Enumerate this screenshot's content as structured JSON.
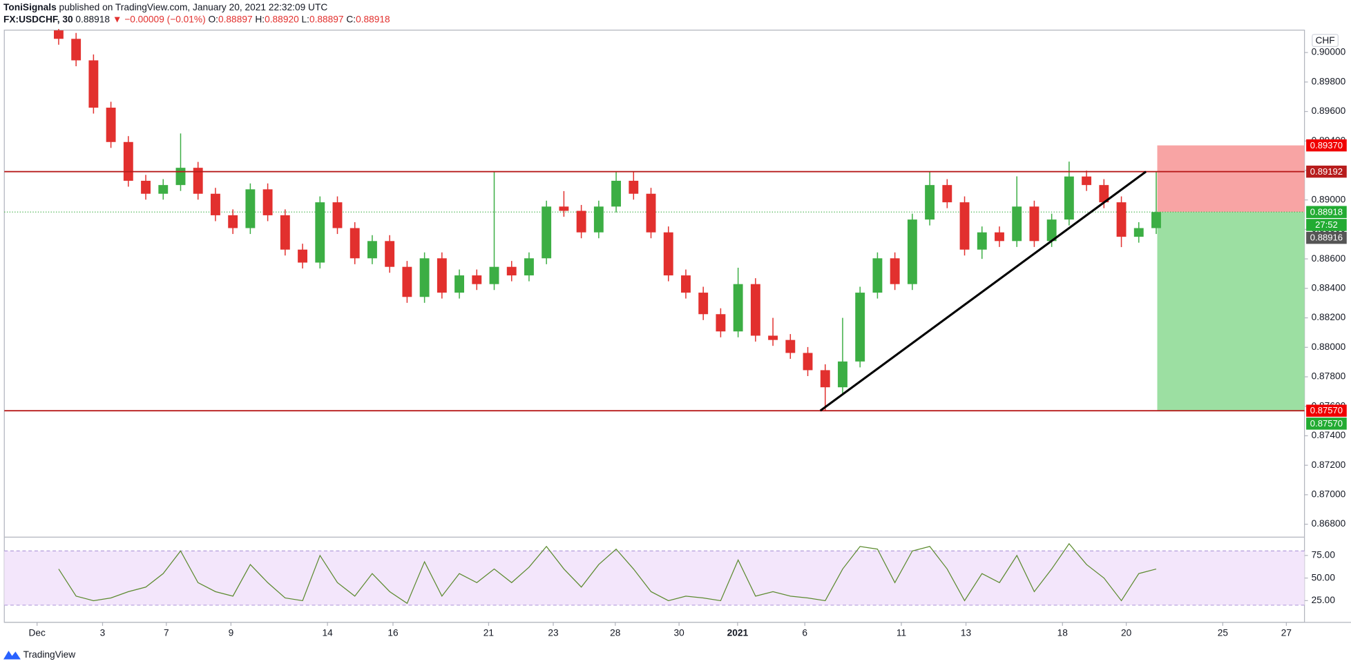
{
  "chart_data": [
    {
      "type": "candlestick",
      "author": "ToniSignals",
      "title": "published on TradingView.com, January 20, 2021 22:32:09 UTC",
      "symbol": "FX:USDCHF, 30",
      "change": "▼ −0.00009 (−0.01%)",
      "ohlc_keys": [
        "O:",
        "H:",
        "L:",
        "C:"
      ],
      "ohlc_values": [
        "0.88897",
        "0.88920",
        "0.88897",
        "0.88918"
      ],
      "currency": "CHF",
      "brand": "TradingView",
      "up_color": "#3cae44",
      "down_color": "#e2302e",
      "open": [
        0.9015,
        0.90093,
        0.89947,
        0.89626,
        0.89393,
        0.8913,
        0.89042,
        0.89101,
        0.89218,
        0.89042,
        0.88896,
        0.88809,
        0.89072,
        0.88896,
        0.88663,
        0.88575,
        0.88984,
        0.88809,
        0.88604,
        0.88721,
        0.88546,
        0.88342,
        0.88604,
        0.88371,
        0.88488,
        0.88429,
        0.88546,
        0.88488,
        0.88604,
        0.88955,
        0.88926,
        0.8878,
        0.88955,
        0.8913,
        0.89042,
        0.8878,
        0.88488,
        0.88371,
        0.88225,
        0.88108,
        0.88429,
        0.88079,
        0.8805,
        0.87962,
        0.87845,
        0.87729,
        0.87904,
        0.88371,
        0.88604,
        0.88429,
        0.88867,
        0.89101,
        0.88984,
        0.88663,
        0.8878,
        0.88721,
        0.88955,
        0.88721,
        0.88867,
        0.89159,
        0.89101,
        0.88984,
        0.8875,
        0.88809
      ],
      "high": [
        0.9016,
        0.90133,
        0.89987,
        0.89666,
        0.89433,
        0.8917,
        0.89141,
        0.89451,
        0.89258,
        0.89082,
        0.88936,
        0.89112,
        0.89112,
        0.88936,
        0.88703,
        0.89024,
        0.89024,
        0.88849,
        0.88761,
        0.88761,
        0.88586,
        0.88644,
        0.88644,
        0.88528,
        0.88528,
        0.89192,
        0.88586,
        0.88644,
        0.88995,
        0.8906,
        0.88966,
        0.88995,
        0.89192,
        0.89192,
        0.89082,
        0.8882,
        0.88528,
        0.88411,
        0.88265,
        0.8854,
        0.88469,
        0.882,
        0.8809,
        0.88002,
        0.87885,
        0.882,
        0.88411,
        0.88644,
        0.88644,
        0.88907,
        0.89192,
        0.89141,
        0.89024,
        0.8882,
        0.8882,
        0.8916,
        0.88995,
        0.88907,
        0.8926,
        0.89199,
        0.89141,
        0.89024,
        0.88849,
        0.89192
      ],
      "low": [
        0.90053,
        0.89907,
        0.89586,
        0.89353,
        0.8909,
        0.89002,
        0.89002,
        0.89061,
        0.89002,
        0.88856,
        0.88769,
        0.88769,
        0.88856,
        0.88623,
        0.88535,
        0.88535,
        0.88769,
        0.88564,
        0.88564,
        0.88506,
        0.88302,
        0.88302,
        0.88331,
        0.88331,
        0.88389,
        0.88389,
        0.88448,
        0.88448,
        0.88564,
        0.88886,
        0.8874,
        0.8874,
        0.88915,
        0.89002,
        0.8874,
        0.88448,
        0.88331,
        0.88185,
        0.88068,
        0.88068,
        0.88039,
        0.8801,
        0.87922,
        0.87805,
        0.8757,
        0.87689,
        0.87864,
        0.88331,
        0.88389,
        0.88389,
        0.88827,
        0.88944,
        0.88623,
        0.886,
        0.88681,
        0.88681,
        0.88681,
        0.88681,
        0.88827,
        0.89061,
        0.88944,
        0.8868,
        0.8871,
        0.88769
      ],
      "close": [
        0.90093,
        0.89947,
        0.89626,
        0.89393,
        0.8913,
        0.89042,
        0.89101,
        0.89218,
        0.89042,
        0.88896,
        0.88809,
        0.89072,
        0.88896,
        0.88663,
        0.88575,
        0.88984,
        0.88809,
        0.88604,
        0.88721,
        0.88546,
        0.88342,
        0.88604,
        0.88371,
        0.88488,
        0.88429,
        0.88546,
        0.88488,
        0.88604,
        0.88955,
        0.88926,
        0.8878,
        0.88955,
        0.8913,
        0.89042,
        0.8878,
        0.88488,
        0.88371,
        0.88225,
        0.88108,
        0.88429,
        0.88079,
        0.8805,
        0.87962,
        0.87845,
        0.87729,
        0.87904,
        0.88371,
        0.88604,
        0.88429,
        0.88867,
        0.89101,
        0.88984,
        0.88663,
        0.8878,
        0.88721,
        0.88955,
        0.88721,
        0.88867,
        0.89159,
        0.89101,
        0.88984,
        0.8875,
        0.88809,
        0.88918
      ],
      "xlim": [
        -3.12,
        71.51
      ],
      "xticks": [
        {
          "value": -1.24,
          "label": "Dec"
        },
        {
          "value": 2.52,
          "label": "3"
        },
        {
          "value": 6.18,
          "label": "7"
        },
        {
          "value": 9.89,
          "label": "9"
        },
        {
          "value": 15.43,
          "label": "14"
        },
        {
          "value": 19.19,
          "label": "16"
        },
        {
          "value": 24.68,
          "label": "21"
        },
        {
          "value": 28.39,
          "label": "23"
        },
        {
          "value": 31.95,
          "label": "28"
        },
        {
          "value": 35.61,
          "label": "30"
        },
        {
          "value": 38.97,
          "label": "2021"
        },
        {
          "value": 42.83,
          "label": "6"
        },
        {
          "value": 48.37,
          "label": "11"
        },
        {
          "value": 52.08,
          "label": "13"
        },
        {
          "value": 57.62,
          "label": "18"
        },
        {
          "value": 61.28,
          "label": "20"
        },
        {
          "value": 66.82,
          "label": "25"
        },
        {
          "value": 70.47,
          "label": "27"
        }
      ],
      "ylim": [
        0.86718,
        0.90152
      ],
      "yticks": [
        {
          "value": 0.9,
          "label": "0.90000"
        },
        {
          "value": 0.898,
          "label": "0.89800"
        },
        {
          "value": 0.896,
          "label": "0.89600"
        },
        {
          "value": 0.894,
          "label": "0.89400"
        },
        {
          "value": 0.892,
          "label": "0.89200"
        },
        {
          "value": 0.89,
          "label": "0.89000"
        },
        {
          "value": 0.888,
          "label": "0.88800"
        },
        {
          "value": 0.886,
          "label": "0.88600"
        },
        {
          "value": 0.884,
          "label": "0.88400"
        },
        {
          "value": 0.882,
          "label": "0.88200"
        },
        {
          "value": 0.88,
          "label": "0.88000"
        },
        {
          "value": 0.878,
          "label": "0.87800"
        },
        {
          "value": 0.876,
          "label": "0.87600"
        },
        {
          "value": 0.874,
          "label": "0.87400"
        },
        {
          "value": 0.872,
          "label": "0.87200"
        },
        {
          "value": 0.87,
          "label": "0.87000"
        },
        {
          "value": 0.868,
          "label": "0.86800"
        }
      ],
      "levels": [
        {
          "value": 0.89192,
          "color": "#b71c1c"
        },
        {
          "value": 0.8757,
          "color": "#b71c1c"
        }
      ],
      "trendline": {
        "x": [
          43.72,
          62.41
        ],
        "y": [
          0.8757,
          0.89192
        ],
        "color": "#000000"
      },
      "position": {
        "x": 63.06,
        "entry": 0.88918,
        "stop": 0.8937,
        "target": 0.8757,
        "stop_color": "#f8a4a4",
        "target_color": "#9cdfa2"
      },
      "last_price_line": {
        "value": 0.88918,
        "color": "#3cae44"
      },
      "price_tags": [
        {
          "value": 0.8937,
          "label": "0.89370",
          "color": "#f00000"
        },
        {
          "value": 0.89192,
          "label": "0.89192",
          "color": "#b71c1c"
        },
        {
          "value": 0.88918,
          "label": "0.88918",
          "color": "#22ab32"
        },
        {
          "label": "27:52",
          "color": "#22ab32"
        },
        {
          "value": 0.88916,
          "label": "0.88916",
          "color": "#555555"
        },
        {
          "value": 0.8757,
          "label": "0.87570",
          "color": "#f00000"
        },
        {
          "value": 0.8757,
          "label": "0.87570",
          "color": "#22ab32"
        }
      ]
    },
    {
      "type": "line",
      "color": "#5b8a2e",
      "values": [
        60,
        30,
        25,
        28,
        35,
        40,
        55,
        80,
        45,
        35,
        30,
        65,
        45,
        28,
        25,
        75,
        45,
        30,
        55,
        35,
        22,
        68,
        30,
        55,
        45,
        60,
        45,
        62,
        85,
        60,
        40,
        65,
        82,
        60,
        35,
        25,
        30,
        28,
        25,
        70,
        30,
        35,
        30,
        28,
        25,
        60,
        85,
        82,
        45,
        80,
        85,
        60,
        25,
        55,
        45,
        75,
        35,
        60,
        88,
        65,
        50,
        25,
        55,
        60
      ],
      "xlim": [
        -3.12,
        71.51
      ],
      "ylim": [
        1.9,
        94.3
      ],
      "bands": [
        20,
        80
      ],
      "band_color": "#f3e6fb",
      "yticks": [
        {
          "value": 75,
          "label": "75.00"
        },
        {
          "value": 50,
          "label": "50.00"
        },
        {
          "value": 25,
          "label": "25.00"
        }
      ]
    }
  ]
}
